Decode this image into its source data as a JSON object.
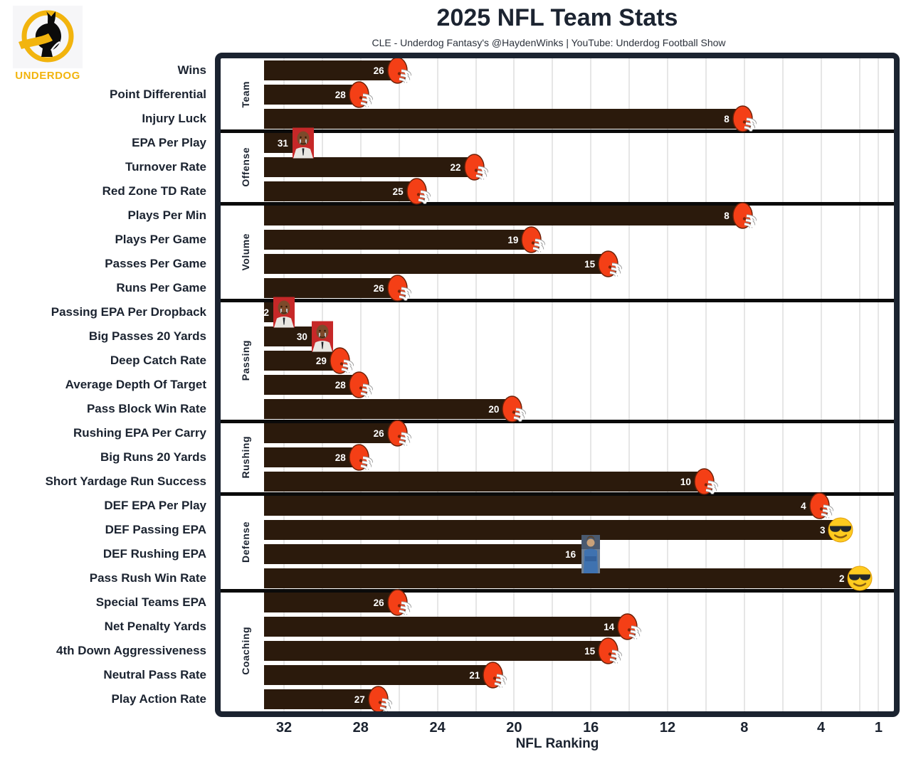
{
  "header": {
    "title": "2025 NFL Team Stats",
    "subtitle": "CLE - Underdog Fantasy's @HaydenWinks | YouTube: Underdog Football Show",
    "logo_text": "UNDERDOG"
  },
  "chart_data": {
    "type": "bar",
    "orientation": "horizontal",
    "team": "CLE",
    "xlabel": "NFL Ranking",
    "x_ticks": [
      32,
      28,
      24,
      20,
      16,
      12,
      8,
      4,
      1
    ],
    "x_axis": {
      "direction": "inverted",
      "worst": 32,
      "best": 1,
      "gridlines_every": 2
    },
    "legend": "none",
    "colors": {
      "bar": "#2b1a0c",
      "helmet_orange": "#f43f16",
      "frame_navy": "#1b2330",
      "brand_yellow": "#f2b40e",
      "gridline": "#e6e6e6"
    },
    "sections": [
      {
        "label": "Team",
        "rows": [
          {
            "label": "Wins",
            "rank": 26,
            "marker": "browns-helmet"
          },
          {
            "label": "Point Differential",
            "rank": 28,
            "marker": "browns-helmet"
          },
          {
            "label": "Injury Luck",
            "rank": 8,
            "marker": "browns-helmet"
          }
        ]
      },
      {
        "label": "Offense",
        "rows": [
          {
            "label": "EPA Per Play",
            "rank": 31,
            "marker": "crying-jordan-meme"
          },
          {
            "label": "Turnover Rate",
            "rank": 22,
            "marker": "browns-helmet"
          },
          {
            "label": "Red Zone TD Rate",
            "rank": 25,
            "marker": "browns-helmet"
          }
        ]
      },
      {
        "label": "Volume",
        "rows": [
          {
            "label": "Plays Per Min",
            "rank": 8,
            "marker": "browns-helmet"
          },
          {
            "label": "Plays Per Game",
            "rank": 19,
            "marker": "browns-helmet"
          },
          {
            "label": "Passes Per Game",
            "rank": 15,
            "marker": "browns-helmet"
          },
          {
            "label": "Runs Per Game",
            "rank": 26,
            "marker": "browns-helmet"
          }
        ]
      },
      {
        "label": "Passing",
        "rows": [
          {
            "label": "Passing EPA Per Dropback",
            "rank": 32,
            "marker": "crying-jordan-meme"
          },
          {
            "label": "Big Passes 20 Yards",
            "rank": 30,
            "marker": "crying-jordan-meme"
          },
          {
            "label": "Deep Catch Rate",
            "rank": 29,
            "marker": "browns-helmet"
          },
          {
            "label": "Average Depth Of Target",
            "rank": 28,
            "marker": "browns-helmet"
          },
          {
            "label": "Pass Block Win Rate",
            "rank": 20,
            "marker": "browns-helmet"
          }
        ]
      },
      {
        "label": "Rushing",
        "rows": [
          {
            "label": "Rushing EPA Per Carry",
            "rank": 26,
            "marker": "browns-helmet"
          },
          {
            "label": "Big Runs 20 Yards",
            "rank": 28,
            "marker": "browns-helmet"
          },
          {
            "label": "Short Yardage Run Success",
            "rank": 10,
            "marker": "browns-helmet"
          }
        ]
      },
      {
        "label": "Defense",
        "rows": [
          {
            "label": "DEF EPA Per Play",
            "rank": 4,
            "marker": "browns-helmet"
          },
          {
            "label": "DEF Passing EPA",
            "rank": 3,
            "marker": "sunglasses-emoji"
          },
          {
            "label": "DEF Rushing EPA",
            "rank": 16,
            "marker": "coach-photo"
          },
          {
            "label": "Pass Rush Win Rate",
            "rank": 2,
            "marker": "sunglasses-emoji"
          }
        ]
      },
      {
        "label": "Coaching",
        "rows": [
          {
            "label": "Special Teams EPA",
            "rank": 26,
            "marker": "browns-helmet"
          },
          {
            "label": "Net Penalty Yards",
            "rank": 14,
            "marker": "browns-helmet"
          },
          {
            "label": "4th Down Aggressiveness",
            "rank": 15,
            "marker": "browns-helmet"
          },
          {
            "label": "Neutral Pass Rate",
            "rank": 21,
            "marker": "browns-helmet"
          },
          {
            "label": "Play Action Rate",
            "rank": 27,
            "marker": "browns-helmet"
          }
        ]
      }
    ]
  }
}
